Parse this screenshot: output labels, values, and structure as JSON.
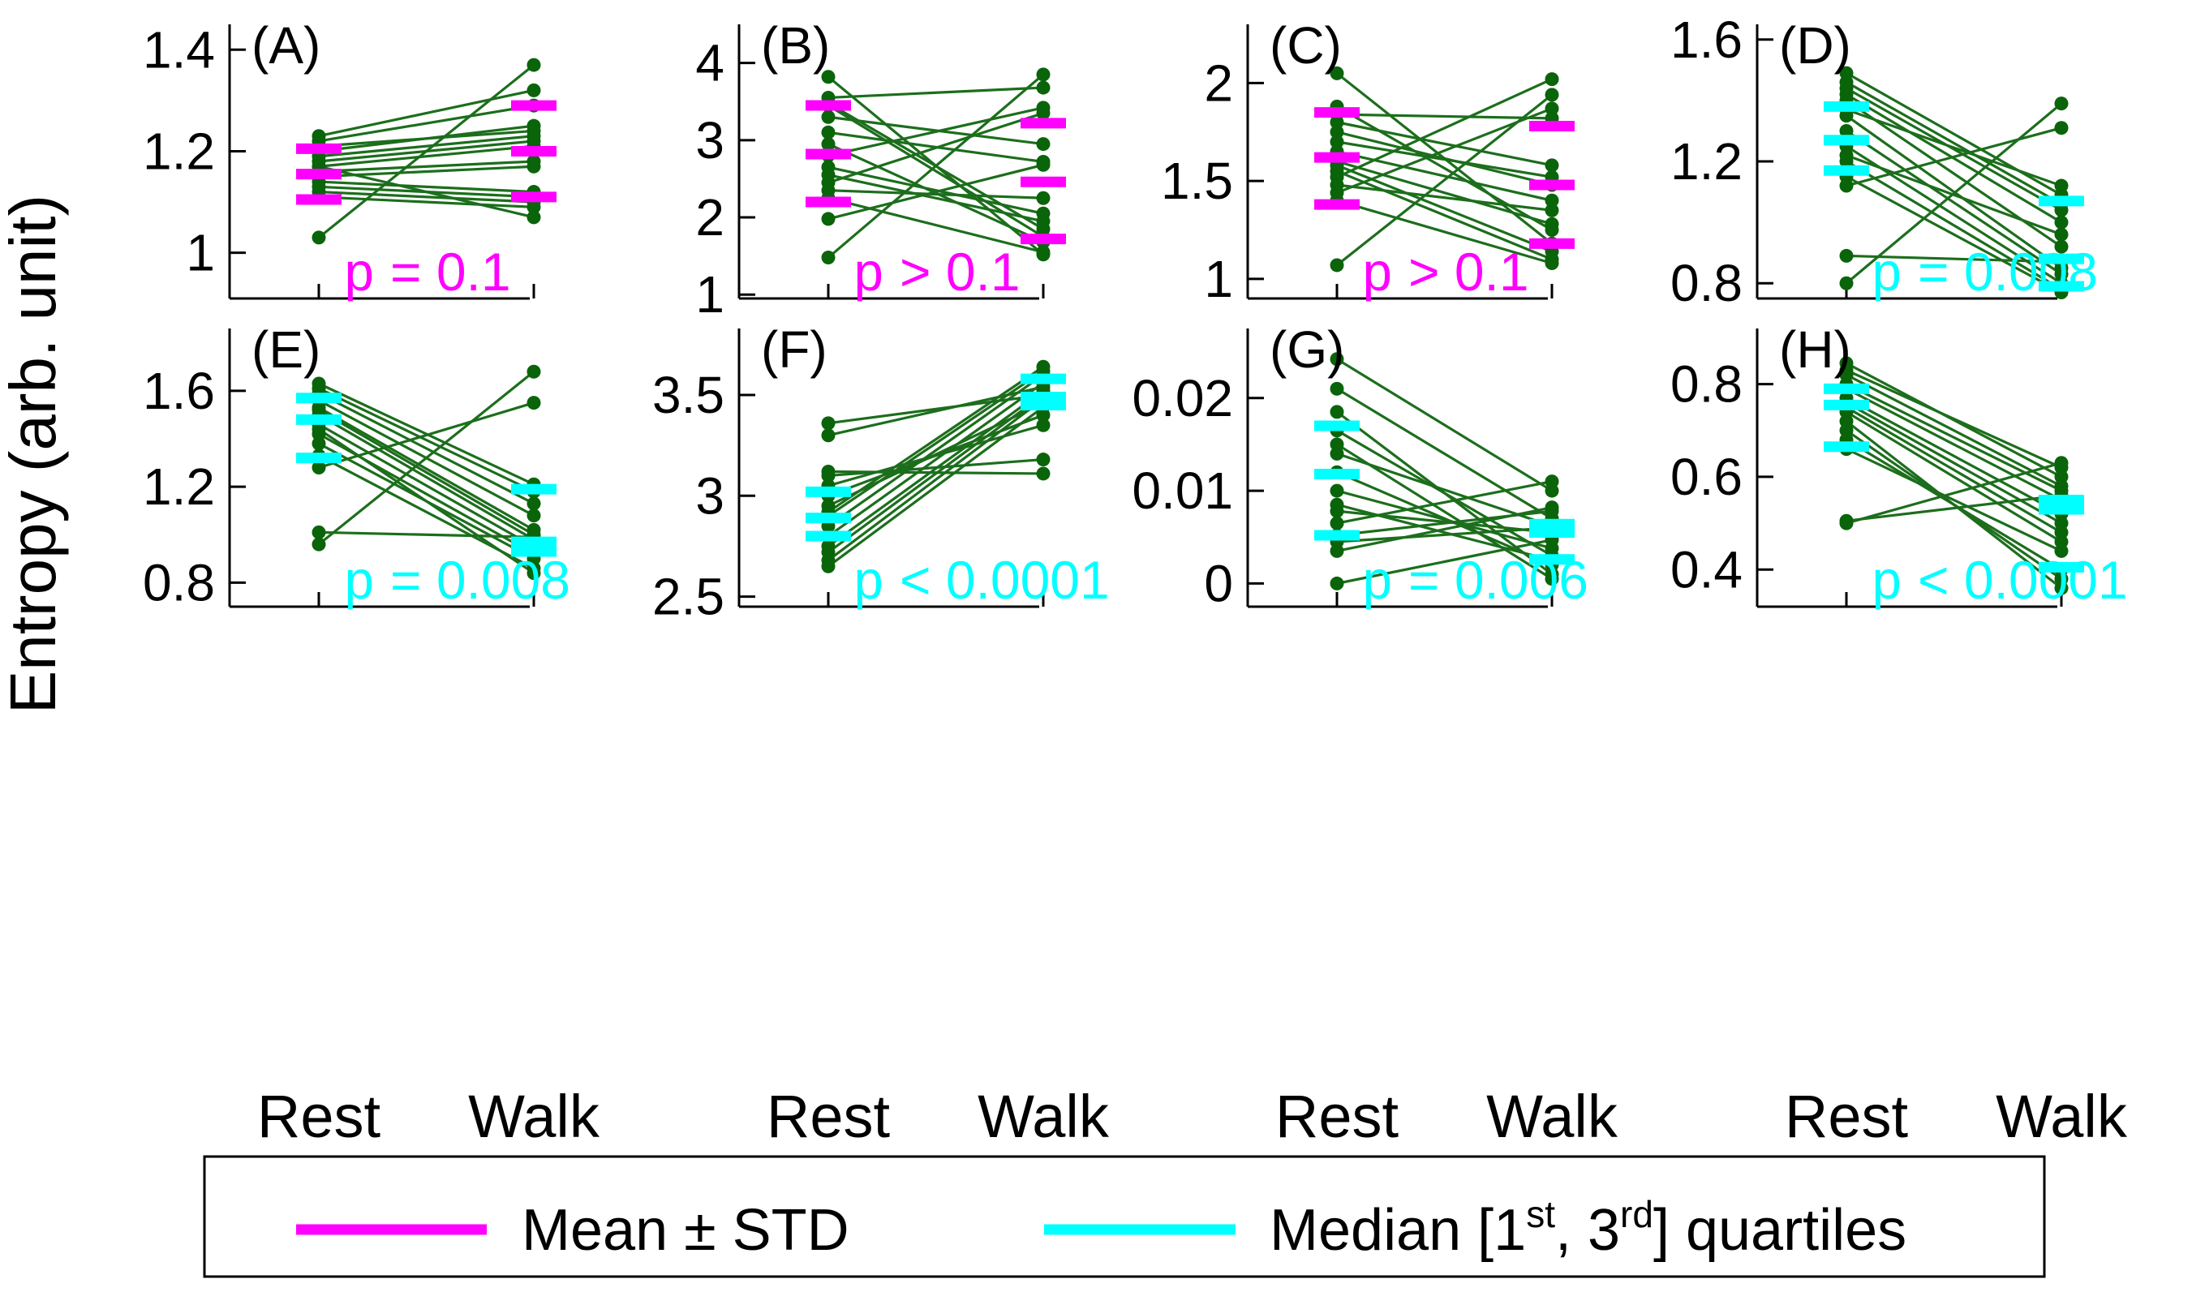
{
  "chart_data": {
    "type": "paired-dot",
    "ylabel": "Entropy (arb. unit)",
    "categories": [
      "Rest",
      "Walk"
    ],
    "colors": {
      "points": "#0a640a",
      "lines": "#1c6e1c",
      "mean_std": "#ff00ff",
      "median_quartiles": "#00ffff"
    },
    "legend": {
      "location": "bottom",
      "mean_label": "Mean ± STD",
      "median_prefix": "Median [1",
      "median_sup1": "st",
      "median_mid": ", 3",
      "median_sup2": "rd",
      "median_suffix": "] quartiles"
    },
    "panels": [
      {
        "label": "(A)",
        "ylim": [
          0.91,
          1.45
        ],
        "yticks": [
          1,
          1.2,
          1.4
        ],
        "ytick_labels": [
          "1",
          "1.2",
          "1.4"
        ],
        "p_prefix": "p",
        "p_rest": " = 0.1",
        "p_color": "mean",
        "stat_type": "mean",
        "rest_stats": [
          1.105,
          1.155,
          1.205
        ],
        "walk_stats": [
          1.11,
          1.2,
          1.29
        ],
        "pairs": [
          [
            1.03,
            1.37
          ],
          [
            1.23,
            1.32
          ],
          [
            1.22,
            1.29
          ],
          [
            1.21,
            1.24
          ],
          [
            1.2,
            1.25
          ],
          [
            1.19,
            1.23
          ],
          [
            1.18,
            1.22
          ],
          [
            1.17,
            1.21
          ],
          [
            1.16,
            1.18
          ],
          [
            1.15,
            1.17
          ],
          [
            1.14,
            1.12
          ],
          [
            1.13,
            1.11
          ],
          [
            1.12,
            1.1
          ],
          [
            1.11,
            1.09
          ],
          [
            1.17,
            1.07
          ]
        ]
      },
      {
        "label": "(B)",
        "ylim": [
          0.95,
          4.5
        ],
        "yticks": [
          1,
          2,
          3,
          4
        ],
        "ytick_labels": [
          "1",
          "2",
          "3",
          "4"
        ],
        "p_prefix": "p",
        "p_rest": " > 0.1",
        "p_color": "mean",
        "stat_type": "mean",
        "rest_stats": [
          2.2,
          2.82,
          3.45
        ],
        "walk_stats": [
          1.72,
          2.46,
          3.22
        ],
        "pairs": [
          [
            1.48,
            3.85
          ],
          [
            1.98,
            2.68
          ],
          [
            3.82,
            1.52
          ],
          [
            3.55,
            3.68
          ],
          [
            3.48,
            1.85
          ],
          [
            3.3,
            2.95
          ],
          [
            3.1,
            2.72
          ],
          [
            2.95,
            1.68
          ],
          [
            2.8,
            3.42
          ],
          [
            2.65,
            2.05
          ],
          [
            2.55,
            1.95
          ],
          [
            2.45,
            3.35
          ],
          [
            2.35,
            2.25
          ],
          [
            3.45,
            1.75
          ],
          [
            2.25,
            1.55
          ]
        ]
      },
      {
        "label": "(C)",
        "ylim": [
          0.9,
          2.3
        ],
        "yticks": [
          1,
          1.5,
          2
        ],
        "ytick_labels": [
          "1",
          "1.5",
          "2"
        ],
        "p_prefix": "p",
        "p_rest": " > 0.1",
        "p_color": "mean",
        "stat_type": "mean",
        "rest_stats": [
          1.38,
          1.62,
          1.85
        ],
        "walk_stats": [
          1.18,
          1.48,
          1.78
        ],
        "pairs": [
          [
            1.07,
            1.94
          ],
          [
            2.05,
            1.18
          ],
          [
            1.88,
            1.25
          ],
          [
            1.84,
            1.82
          ],
          [
            1.8,
            1.58
          ],
          [
            1.75,
            1.48
          ],
          [
            1.7,
            1.52
          ],
          [
            1.65,
            1.4
          ],
          [
            1.58,
            1.14
          ],
          [
            1.55,
            1.1
          ],
          [
            1.52,
            2.02
          ],
          [
            1.48,
            1.35
          ],
          [
            1.44,
            1.87
          ],
          [
            1.4,
            1.08
          ],
          [
            1.6,
            1.28
          ]
        ]
      },
      {
        "label": "(D)",
        "ylim": [
          0.75,
          1.65
        ],
        "yticks": [
          0.8,
          1.2,
          1.6
        ],
        "ytick_labels": [
          "0.8",
          "1.2",
          "1.6"
        ],
        "p_prefix": "p",
        "p_rest": " = 0.008",
        "p_color": "median",
        "stat_type": "median",
        "rest_stats": [
          1.17,
          1.27,
          1.38
        ],
        "walk_stats": [
          0.79,
          0.88,
          1.07
        ],
        "pairs": [
          [
            0.8,
            1.39
          ],
          [
            0.89,
            0.87
          ],
          [
            1.12,
            1.31
          ],
          [
            1.15,
            0.77
          ],
          [
            1.2,
            0.78
          ],
          [
            1.25,
            0.8
          ],
          [
            1.3,
            0.83
          ],
          [
            1.35,
            0.85
          ],
          [
            1.4,
            0.92
          ],
          [
            1.42,
            1.0
          ],
          [
            1.44,
            1.04
          ],
          [
            1.46,
            1.06
          ],
          [
            1.49,
            1.09
          ],
          [
            1.37,
            1.12
          ],
          [
            1.22,
            0.96
          ]
        ]
      },
      {
        "label": "(E)",
        "ylim": [
          0.7,
          1.86
        ],
        "yticks": [
          0.8,
          1.2,
          1.6
        ],
        "ytick_labels": [
          "0.8",
          "1.2",
          "1.6"
        ],
        "p_prefix": "p",
        "p_rest": " = 0.008",
        "p_color": "median",
        "stat_type": "median",
        "rest_stats": [
          1.32,
          1.48,
          1.57
        ],
        "walk_stats": [
          0.93,
          0.97,
          1.19
        ],
        "pairs": [
          [
            0.96,
            1.68
          ],
          [
            1.01,
            0.99
          ],
          [
            1.28,
            1.55
          ],
          [
            1.33,
            0.86
          ],
          [
            1.38,
            0.9
          ],
          [
            1.42,
            0.92
          ],
          [
            1.46,
            0.95
          ],
          [
            1.5,
            0.98
          ],
          [
            1.53,
            1.02
          ],
          [
            1.56,
            1.08
          ],
          [
            1.59,
            1.13
          ],
          [
            1.61,
            1.18
          ],
          [
            1.63,
            1.21
          ],
          [
            1.44,
            0.84
          ],
          [
            1.52,
            1.0
          ]
        ]
      },
      {
        "label": "(F)",
        "ylim": [
          2.45,
          3.83
        ],
        "yticks": [
          2.5,
          3,
          3.5
        ],
        "ytick_labels": [
          "2.5",
          "3",
          "3.5"
        ],
        "p_prefix": "p",
        "p_rest": " < 0.0001",
        "p_color": "median",
        "stat_type": "median",
        "rest_stats": [
          2.8,
          2.89,
          3.02
        ],
        "walk_stats": [
          3.45,
          3.49,
          3.58
        ],
        "pairs": [
          [
            2.65,
            3.44
          ],
          [
            2.68,
            3.48
          ],
          [
            2.72,
            3.5
          ],
          [
            2.75,
            3.52
          ],
          [
            2.8,
            3.56
          ],
          [
            2.85,
            3.6
          ],
          [
            2.9,
            3.62
          ],
          [
            2.95,
            3.46
          ],
          [
            3.0,
            3.4
          ],
          [
            3.05,
            3.35
          ],
          [
            3.1,
            3.18
          ],
          [
            3.12,
            3.11
          ],
          [
            3.3,
            3.54
          ],
          [
            3.36,
            3.5
          ],
          [
            2.92,
            3.64
          ]
        ]
      },
      {
        "label": "(G)",
        "ylim": [
          -0.0025,
          0.0275
        ],
        "yticks": [
          0,
          0.01,
          0.02
        ],
        "ytick_labels": [
          "0",
          "0.01",
          "0.02"
        ],
        "p_prefix": "p",
        "p_rest": " = 0.006",
        "p_color": "median",
        "stat_type": "median",
        "rest_stats": [
          0.0052,
          0.0118,
          0.017
        ],
        "walk_stats": [
          0.0026,
          0.0055,
          0.0064
        ],
        "pairs": [
          [
            0.0,
            0.0047
          ],
          [
            0.0035,
            0.0082
          ],
          [
            0.0045,
            0.006
          ],
          [
            0.0052,
            0.0078
          ],
          [
            0.0065,
            0.011
          ],
          [
            0.0078,
            0.0055
          ],
          [
            0.0085,
            0.0025
          ],
          [
            0.01,
            0.0038
          ],
          [
            0.012,
            0.002
          ],
          [
            0.015,
            0.0005
          ],
          [
            0.0165,
            0.003
          ],
          [
            0.0185,
            0.001
          ],
          [
            0.021,
            0.007
          ],
          [
            0.0242,
            0.01
          ],
          [
            0.014,
            0.0062
          ]
        ]
      },
      {
        "label": "(H)",
        "ylim": [
          0.32,
          0.92
        ],
        "yticks": [
          0.4,
          0.6,
          0.8
        ],
        "ytick_labels": [
          "0.4",
          "0.6",
          "0.8"
        ],
        "p_prefix": "p",
        "p_rest": " < 0.0001",
        "p_color": "median",
        "stat_type": "median",
        "rest_stats": [
          0.665,
          0.755,
          0.79
        ],
        "walk_stats": [
          0.405,
          0.53,
          0.55
        ],
        "pairs": [
          [
            0.5,
            0.63
          ],
          [
            0.505,
            0.56
          ],
          [
            0.66,
            0.44
          ],
          [
            0.68,
            0.4
          ],
          [
            0.7,
            0.38
          ],
          [
            0.72,
            0.36
          ],
          [
            0.74,
            0.46
          ],
          [
            0.76,
            0.5
          ],
          [
            0.77,
            0.52
          ],
          [
            0.79,
            0.55
          ],
          [
            0.8,
            0.57
          ],
          [
            0.82,
            0.58
          ],
          [
            0.845,
            0.6
          ],
          [
            0.83,
            0.62
          ],
          [
            0.75,
            0.48
          ]
        ]
      }
    ]
  }
}
